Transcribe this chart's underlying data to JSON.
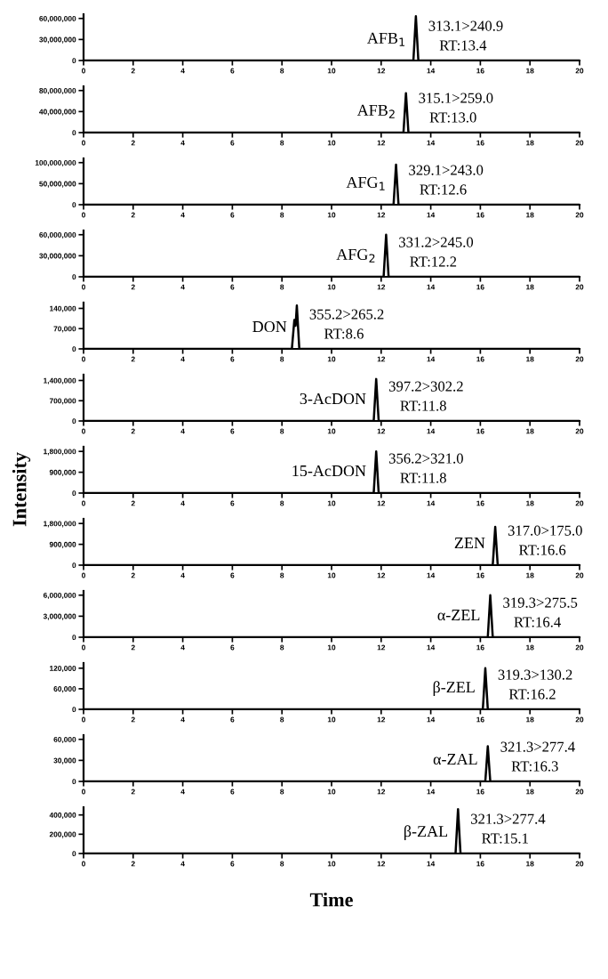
{
  "chart_data": [
    {
      "type": "line",
      "x": [
        0,
        13.3,
        13.4,
        13.5,
        13.6,
        20
      ],
      "values": [
        0,
        0,
        63000000,
        0,
        0,
        0
      ],
      "color": "#000000",
      "xlim": [
        0,
        20
      ],
      "xticks": [
        0,
        2,
        4,
        6,
        8,
        10,
        12,
        14,
        16,
        18,
        20
      ],
      "ylim": [
        0,
        66000000
      ],
      "yticks": [
        0,
        {
          "value": 30000000,
          "label": "30,000,000"
        },
        {
          "value": 60000000,
          "label": "60,000,000"
        }
      ],
      "annotations": [
        "AFB$_{1}$",
        "313.1>240.9",
        "RT:13.4"
      ],
      "grid": false,
      "legend": false
    },
    {
      "type": "line",
      "x": [
        0,
        12.9,
        13.0,
        13.1,
        13.2,
        20
      ],
      "values": [
        0,
        0,
        75000000,
        0,
        0,
        0
      ],
      "color": "#000000",
      "xlim": [
        0,
        20
      ],
      "xticks": [
        0,
        2,
        4,
        6,
        8,
        10,
        12,
        14,
        16,
        18,
        20
      ],
      "ylim": [
        0,
        88000000
      ],
      "yticks": [
        0,
        {
          "value": 40000000,
          "label": "40,000,000"
        },
        {
          "value": 80000000,
          "label": "80,000,000"
        }
      ],
      "annotations": [
        "AFB$_{2}$",
        "315.1>259.0",
        "RT:13.0"
      ],
      "grid": false,
      "legend": false
    },
    {
      "type": "line",
      "x": [
        0,
        12.5,
        12.6,
        12.7,
        12.8,
        20
      ],
      "values": [
        0,
        0,
        95000000,
        0,
        0,
        0
      ],
      "color": "#000000",
      "xlim": [
        0,
        20
      ],
      "xticks": [
        0,
        2,
        4,
        6,
        8,
        10,
        12,
        14,
        16,
        18,
        20
      ],
      "ylim": [
        0,
        110000000
      ],
      "yticks": [
        0,
        {
          "value": 50000000,
          "label": "50,000,000"
        },
        {
          "value": 100000000,
          "label": "100,000,000"
        }
      ],
      "annotations": [
        "AFG$_{1}$",
        "329.1>243.0",
        "RT:12.6"
      ],
      "grid": false,
      "legend": false
    },
    {
      "type": "line",
      "x": [
        0,
        12.1,
        12.2,
        12.3,
        12.4,
        20
      ],
      "values": [
        0,
        0,
        60000000,
        0,
        0,
        0
      ],
      "color": "#000000",
      "xlim": [
        0,
        20
      ],
      "xticks": [
        0,
        2,
        4,
        6,
        8,
        10,
        12,
        14,
        16,
        18,
        20
      ],
      "ylim": [
        0,
        66000000
      ],
      "yticks": [
        0,
        {
          "value": 30000000,
          "label": "30,000,000"
        },
        {
          "value": 60000000,
          "label": "60,000,000"
        }
      ],
      "annotations": [
        "AFG$_{2}$",
        "331.2>245.0",
        "RT:12.2"
      ],
      "grid": false,
      "legend": false
    },
    {
      "type": "line",
      "x": [
        0,
        8.4,
        8.5,
        8.55,
        8.6,
        8.7,
        20
      ],
      "values": [
        0,
        0,
        100000,
        80000,
        150000,
        0,
        0
      ],
      "color": "#000000",
      "xlim": [
        0,
        20
      ],
      "xticks": [
        0,
        2,
        4,
        6,
        8,
        10,
        12,
        14,
        16,
        18,
        20
      ],
      "ylim": [
        0,
        160000
      ],
      "yticks": [
        0,
        {
          "value": 70000,
          "label": "70,000"
        },
        {
          "value": 140000,
          "label": "140,000"
        }
      ],
      "annotations": [
        "DON",
        "355.2>265.2",
        "RT:8.6"
      ],
      "grid": false,
      "legend": false
    },
    {
      "type": "line",
      "x": [
        0,
        11.7,
        11.8,
        11.9,
        12.0,
        20
      ],
      "values": [
        0,
        0,
        1450000,
        0,
        0,
        0
      ],
      "color": "#000000",
      "xlim": [
        0,
        20
      ],
      "xticks": [
        0,
        2,
        4,
        6,
        8,
        10,
        12,
        14,
        16,
        18,
        20
      ],
      "ylim": [
        0,
        1600000
      ],
      "yticks": [
        0,
        {
          "value": 700000,
          "label": "700,000"
        },
        {
          "value": 1400000,
          "label": "1,400,000"
        }
      ],
      "annotations": [
        "3-AcDON",
        "397.2>302.2",
        "RT:11.8"
      ],
      "grid": false,
      "legend": false
    },
    {
      "type": "line",
      "x": [
        0,
        11.7,
        11.8,
        11.9,
        12.0,
        20
      ],
      "values": [
        0,
        0,
        1800000,
        0,
        0,
        0
      ],
      "color": "#000000",
      "xlim": [
        0,
        20
      ],
      "xticks": [
        0,
        2,
        4,
        6,
        8,
        10,
        12,
        14,
        16,
        18,
        20
      ],
      "ylim": [
        0,
        2000000
      ],
      "yticks": [
        0,
        {
          "value": 900000,
          "label": "900,000"
        },
        {
          "value": 1800000,
          "label": "1,800,000"
        }
      ],
      "annotations": [
        "15-AcDON",
        "356.2>321.0",
        "RT:11.8"
      ],
      "ylabel": "Intensity",
      "grid": false,
      "legend": false
    },
    {
      "type": "line",
      "x": [
        0,
        16.5,
        16.6,
        16.7,
        16.8,
        20
      ],
      "values": [
        0,
        0,
        1650000,
        0,
        0,
        0
      ],
      "color": "#000000",
      "xlim": [
        0,
        20
      ],
      "xticks": [
        0,
        2,
        4,
        6,
        8,
        10,
        12,
        14,
        16,
        18,
        20
      ],
      "ylim": [
        0,
        2000000
      ],
      "yticks": [
        0,
        {
          "value": 900000,
          "label": "900,000"
        },
        {
          "value": 1800000,
          "label": "1,800,000"
        }
      ],
      "annotations": [
        "ZEN",
        "317.0>175.0",
        "RT:16.6"
      ],
      "grid": false,
      "legend": false
    },
    {
      "type": "line",
      "x": [
        0,
        16.3,
        16.4,
        16.5,
        16.6,
        20
      ],
      "values": [
        0,
        0,
        6000000,
        0,
        0,
        0
      ],
      "color": "#000000",
      "xlim": [
        0,
        20
      ],
      "xticks": [
        0,
        2,
        4,
        6,
        8,
        10,
        12,
        14,
        16,
        18,
        20
      ],
      "ylim": [
        0,
        6600000
      ],
      "yticks": [
        0,
        {
          "value": 3000000,
          "label": "3,000,000"
        },
        {
          "value": 6000000,
          "label": "6,000,000"
        }
      ],
      "annotations": [
        "α-ZEL",
        "319.3>275.5",
        "RT:16.4"
      ],
      "grid": false,
      "legend": false
    },
    {
      "type": "line",
      "x": [
        0,
        16.1,
        16.2,
        16.3,
        16.4,
        20
      ],
      "values": [
        0,
        0,
        120000,
        0,
        0,
        0
      ],
      "color": "#000000",
      "xlim": [
        0,
        20
      ],
      "xticks": [
        0,
        2,
        4,
        6,
        8,
        10,
        12,
        14,
        16,
        18,
        20
      ],
      "ylim": [
        0,
        135000
      ],
      "yticks": [
        0,
        {
          "value": 60000,
          "label": "60,000"
        },
        {
          "value": 120000,
          "label": "120,000"
        }
      ],
      "annotations": [
        "β-ZEL",
        "319.3>130.2",
        "RT:16.2"
      ],
      "grid": false,
      "legend": false
    },
    {
      "type": "line",
      "x": [
        0,
        16.2,
        16.3,
        16.4,
        16.5,
        20
      ],
      "values": [
        0,
        0,
        50000,
        0,
        0,
        0
      ],
      "color": "#000000",
      "xlim": [
        0,
        20
      ],
      "xticks": [
        0,
        2,
        4,
        6,
        8,
        10,
        12,
        14,
        16,
        18,
        20
      ],
      "ylim": [
        0,
        66000
      ],
      "yticks": [
        0,
        {
          "value": 30000,
          "label": "30,000"
        },
        {
          "value": 60000,
          "label": "60,000"
        }
      ],
      "annotations": [
        "α-ZAL",
        "321.3>277.4",
        "RT:16.3"
      ],
      "grid": false,
      "legend": false
    },
    {
      "type": "line",
      "x": [
        0,
        15.0,
        15.1,
        15.2,
        15.3,
        20
      ],
      "values": [
        0,
        0,
        460000,
        0,
        0,
        0
      ],
      "color": "#000000",
      "xlim": [
        0,
        20
      ],
      "xticks": [
        0,
        2,
        4,
        6,
        8,
        10,
        12,
        14,
        16,
        18,
        20
      ],
      "ylim": [
        0,
        480000
      ],
      "yticks": [
        0,
        {
          "value": 200000,
          "label": "200,000"
        },
        {
          "value": 400000,
          "label": "400,000"
        }
      ],
      "annotations": [
        "β-ZAL",
        "321.3>277.4",
        "RT:15.1"
      ],
      "xlabel": "Time",
      "grid": false,
      "legend": false
    }
  ]
}
